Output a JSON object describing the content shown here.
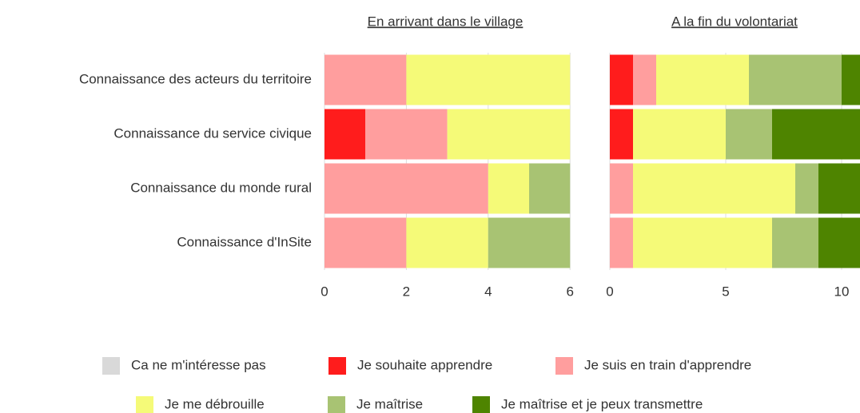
{
  "chart_data": [
    {
      "type": "bar",
      "orientation": "horizontal",
      "stacked": true,
      "title": "En arrivant dans le village",
      "categories": [
        "Connaissance des acteurs du territoire",
        "Connaissance du service civique",
        "Connaissance du monde rural",
        "Connaissance d'InSite"
      ],
      "series": [
        {
          "name": "Ca ne m'intéresse pas",
          "color": "#d9d9d9",
          "values": [
            0,
            0,
            0,
            0
          ]
        },
        {
          "name": "Je souhaite apprendre",
          "color": "#ff1c1c",
          "values": [
            0,
            1,
            0,
            0
          ]
        },
        {
          "name": "Je suis en train d'apprendre",
          "color": "#ff9e9e",
          "values": [
            2,
            2,
            4,
            2
          ]
        },
        {
          "name": "Je me débrouille",
          "color": "#f5fa78",
          "values": [
            4,
            3,
            1,
            2
          ]
        },
        {
          "name": "Je maîtrise",
          "color": "#a8c373",
          "values": [
            0,
            0,
            1,
            2
          ]
        },
        {
          "name": "Je maîtrise et je peux transmettre",
          "color": "#4e8400",
          "values": [
            0,
            0,
            0,
            0
          ]
        }
      ],
      "xlim": [
        0,
        6
      ],
      "xticks": [
        0,
        2,
        4,
        6
      ]
    },
    {
      "type": "bar",
      "orientation": "horizontal",
      "stacked": true,
      "title": "A la fin du volontariat",
      "series": [
        {
          "values": [
            0,
            0,
            0,
            0
          ]
        },
        {
          "values": [
            1,
            1,
            0,
            0
          ]
        },
        {
          "values": [
            1,
            0,
            1,
            1
          ]
        },
        {
          "values": [
            4,
            4,
            7,
            6
          ]
        },
        {
          "values": [
            4,
            2,
            1,
            2
          ]
        },
        {
          "values": [
            1,
            4,
            2,
            2
          ]
        }
      ],
      "xlim": [
        0,
        11
      ],
      "xticks": [
        0,
        5,
        10
      ]
    }
  ]
}
